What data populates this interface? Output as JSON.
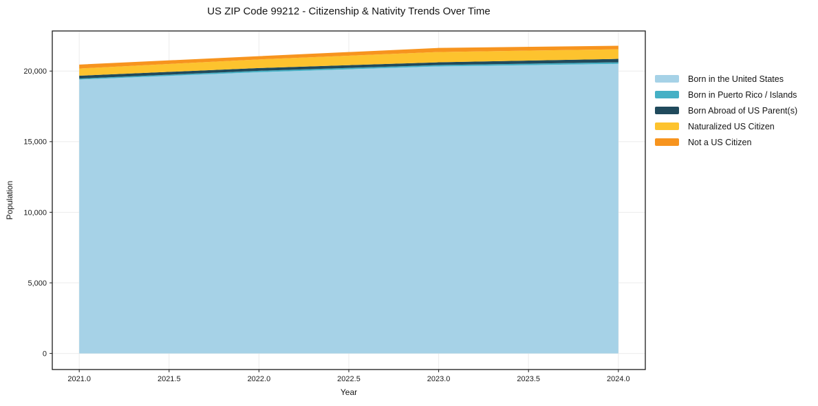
{
  "chart_data": {
    "type": "area",
    "stacked": true,
    "title": "US ZIP Code 99212 - Citizenship & Nativity Trends Over Time",
    "xlabel": "Year",
    "ylabel": "Population",
    "x": [
      2021,
      2022,
      2023,
      2024
    ],
    "series": [
      {
        "name": "Born in the United States",
        "color": "#a6d2e7",
        "values": [
          19400,
          19920,
          20330,
          20510
        ]
      },
      {
        "name": "Born in Puerto Rico / Islands",
        "color": "#45b0c5",
        "values": [
          70,
          100,
          95,
          110
        ]
      },
      {
        "name": "Born Abroad of US Parent(s)",
        "color": "#204a5c",
        "values": [
          200,
          195,
          195,
          245
        ]
      },
      {
        "name": "Naturalized US Citizen",
        "color": "#fdc32e",
        "values": [
          510,
          610,
          730,
          680
        ]
      },
      {
        "name": "Not a US Citizen",
        "color": "#f7941e",
        "values": [
          280,
          230,
          290,
          245
        ]
      }
    ],
    "xlim": [
      2020.85,
      2024.15
    ],
    "ylim": [
      -1140,
      22840
    ],
    "xticks": {
      "values": [
        2021,
        2021.5,
        2022,
        2022.5,
        2023,
        2023.5,
        2024
      ],
      "labels": [
        "2021.0",
        "2021.5",
        "2022.0",
        "2022.5",
        "2023.0",
        "2023.5",
        "2024.0"
      ]
    },
    "yticks": {
      "values": [
        0,
        5000,
        10000,
        15000,
        20000
      ],
      "labels": [
        "0",
        "5,000",
        "10,000",
        "15,000",
        "20,000"
      ]
    },
    "grid": true,
    "legend_position": "outside-right",
    "colors": {
      "grid": "#ebebeb",
      "spine": "#1a1a1a",
      "background": "#ffffff"
    }
  }
}
